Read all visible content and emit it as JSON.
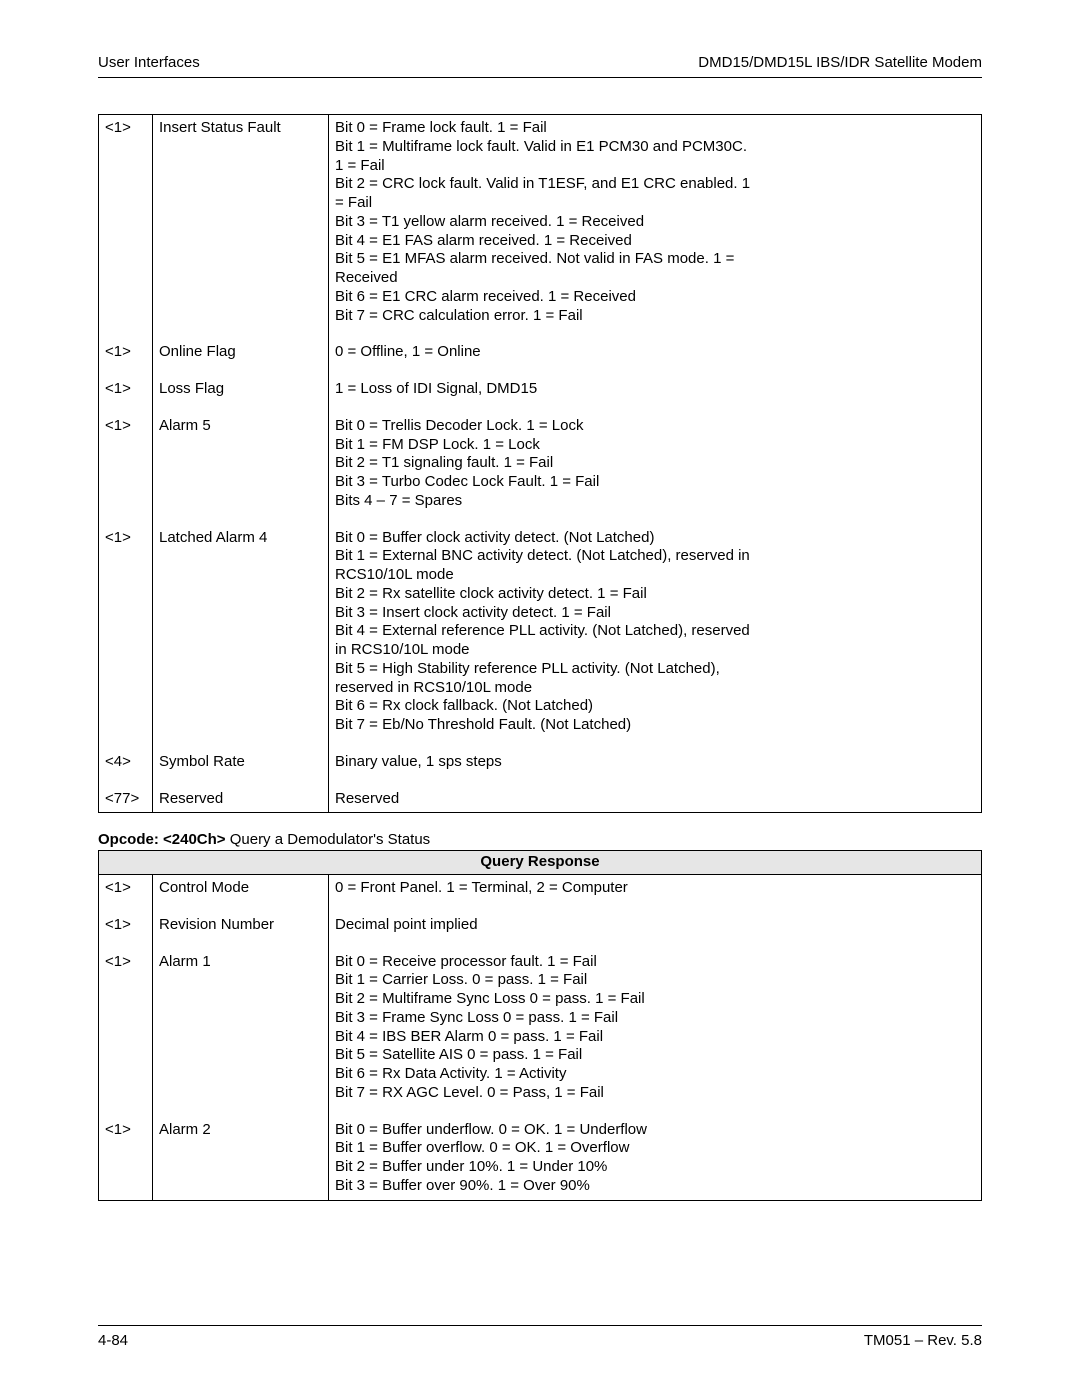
{
  "header": {
    "left": "User Interfaces",
    "right": "DMD15/DMD15L IBS/IDR Satellite Modem"
  },
  "footer": {
    "left": "4-84",
    "right": "TM051 – Rev. 5.8"
  },
  "table1": {
    "rows": [
      {
        "tag": "<1>",
        "name": "Insert Status Fault",
        "desc": [
          "Bit 0 = Frame lock fault. 1 = Fail",
          "Bit 1 = Multiframe lock fault. Valid in E1 PCM30 and PCM30C.",
          "1 = Fail",
          "Bit 2 = CRC lock fault. Valid in T1ESF, and E1 CRC enabled. 1",
          "= Fail",
          "Bit 3 = T1 yellow alarm received. 1 = Received",
          "Bit 4 = E1 FAS alarm received. 1 = Received",
          "Bit 5 = E1 MFAS alarm received. Not valid in FAS mode. 1 =",
          "Received",
          "Bit 6 = E1 CRC alarm received. 1 = Received",
          "Bit 7 = CRC calculation error. 1 = Fail"
        ]
      },
      {
        "tag": "<1>",
        "name": "Online Flag",
        "desc": [
          "0 = Offline, 1 = Online"
        ]
      },
      {
        "tag": "<1>",
        "name": "Loss Flag",
        "desc": [
          "1 = Loss of IDI Signal, DMD15"
        ]
      },
      {
        "tag": "<1>",
        "name": "Alarm 5",
        "desc": [
          "Bit 0 = Trellis Decoder Lock. 1 = Lock",
          "Bit 1 = FM DSP Lock. 1 = Lock",
          "Bit 2 = T1 signaling fault. 1 = Fail",
          "Bit 3 = Turbo Codec Lock Fault. 1 = Fail",
          "Bits 4 – 7 = Spares"
        ]
      },
      {
        "tag": "<1>",
        "name": "Latched Alarm 4",
        "desc": [
          "Bit 0 = Buffer clock activity detect. (Not Latched)",
          "Bit 1 = External BNC activity detect. (Not Latched), reserved in",
          "RCS10/10L mode",
          "Bit 2 = Rx satellite clock activity detect. 1 = Fail",
          "Bit 3 = Insert clock activity detect. 1 = Fail",
          "Bit 4 = External reference PLL activity. (Not Latched), reserved",
          "in RCS10/10L mode",
          "Bit 5 = High Stability reference PLL activity. (Not Latched),",
          "reserved in RCS10/10L mode",
          "Bit 6 = Rx clock fallback. (Not Latched)",
          "Bit 7 = Eb/No Threshold Fault. (Not Latched)"
        ]
      },
      {
        "tag": "<4>",
        "name": "Symbol Rate",
        "desc": [
          "Binary value, 1 sps steps"
        ]
      },
      {
        "tag": "<77>",
        "name": "Reserved",
        "desc": [
          "Reserved"
        ]
      }
    ]
  },
  "opcode": {
    "bold": "Opcode: <240Ch>",
    "rest": " Query a Demodulator's Status"
  },
  "table2": {
    "header": "Query Response",
    "rows": [
      {
        "tag": "<1>",
        "name": "Control Mode",
        "desc": [
          "0 = Front Panel. 1 = Terminal, 2 = Computer"
        ]
      },
      {
        "tag": "<1>",
        "name": "Revision Number",
        "desc": [
          "Decimal point implied"
        ]
      },
      {
        "tag": "<1>",
        "name": "Alarm 1",
        "desc": [
          "Bit 0 = Receive processor fault. 1 = Fail",
          "Bit 1 = Carrier Loss. 0 = pass. 1 = Fail",
          "Bit 2 = Multiframe Sync Loss 0 = pass. 1 = Fail",
          "Bit 3 = Frame Sync Loss 0 = pass. 1 = Fail",
          "Bit 4 = IBS BER Alarm 0 = pass. 1 = Fail",
          "Bit 5 = Satellite AIS 0 = pass. 1 = Fail",
          "Bit 6 = Rx Data Activity. 1 = Activity",
          "Bit 7 = RX AGC Level. 0 = Pass, 1 = Fail"
        ]
      },
      {
        "tag": "<1>",
        "name": "Alarm 2",
        "desc": [
          "Bit 0 = Buffer underflow. 0 = OK. 1 = Underflow",
          "Bit 1 = Buffer overflow. 0 = OK. 1 = Overflow",
          "Bit 2 = Buffer under 10%. 1 = Under 10%",
          "Bit 3 = Buffer over 90%. 1 = Over 90%"
        ]
      }
    ]
  }
}
